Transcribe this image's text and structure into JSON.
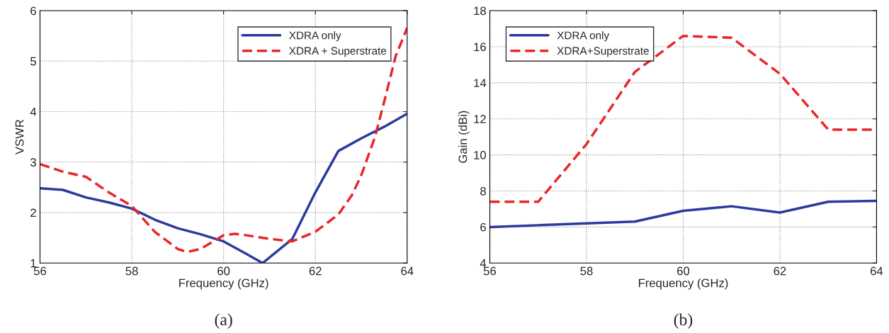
{
  "chart_data": [
    {
      "type": "line",
      "xlabel": "Frequency (GHz)",
      "ylabel": "VSWR",
      "xlim": [
        56,
        64
      ],
      "ylim": [
        1,
        6
      ],
      "xticks": [
        56,
        58,
        60,
        62,
        64
      ],
      "yticks": [
        1,
        2,
        3,
        4,
        5,
        6
      ],
      "grid": true,
      "legend": "top right",
      "annotations": [
        "(a)"
      ],
      "series": [
        {
          "name": "XDRA only",
          "color": "#2b3a9e",
          "line_style": "solid",
          "x": [
            56,
            56.5,
            57,
            57.5,
            58,
            58.5,
            59,
            59.5,
            60,
            60.5,
            60.85,
            61.5,
            62,
            62.5,
            63,
            63.5,
            64
          ],
          "values": [
            2.48,
            2.45,
            2.3,
            2.2,
            2.08,
            1.86,
            1.69,
            1.57,
            1.43,
            1.18,
            1.0,
            1.48,
            2.4,
            3.22,
            3.47,
            3.7,
            3.96
          ]
        },
        {
          "name": "XDRA + Superstrate",
          "color": "#e8262b",
          "line_style": "dashed",
          "x": [
            56,
            56.5,
            57,
            57.5,
            58,
            58.5,
            59,
            59.2,
            59.5,
            60,
            60.25,
            60.5,
            61,
            61.5,
            62,
            62.5,
            62.8,
            63,
            63.3,
            63.5,
            63.75,
            64
          ],
          "values": [
            2.96,
            2.81,
            2.71,
            2.4,
            2.13,
            1.62,
            1.28,
            1.22,
            1.28,
            1.55,
            1.58,
            1.55,
            1.48,
            1.43,
            1.62,
            1.96,
            2.35,
            2.74,
            3.5,
            4.2,
            5.1,
            5.66
          ]
        }
      ]
    },
    {
      "type": "line",
      "xlabel": "Frequency (GHz)",
      "ylabel": "Gain (dBi)",
      "xlim": [
        56,
        64
      ],
      "ylim": [
        4,
        18
      ],
      "xticks": [
        56,
        58,
        60,
        62,
        64
      ],
      "yticks": [
        4,
        6,
        8,
        10,
        12,
        14,
        16,
        18
      ],
      "grid": true,
      "legend": "top left",
      "annotations": [
        "(b)"
      ],
      "series": [
        {
          "name": "XDRA only",
          "color": "#2b3a9e",
          "line_style": "solid",
          "x": [
            56,
            57,
            58,
            59,
            60,
            61,
            62,
            63,
            64
          ],
          "values": [
            6.0,
            6.1,
            6.2,
            6.3,
            6.9,
            7.15,
            6.8,
            7.4,
            7.45
          ]
        },
        {
          "name": "XDRA+Superstrate",
          "color": "#e8262b",
          "line_style": "dashed",
          "x": [
            56,
            57,
            58,
            59,
            60,
            61,
            62,
            63,
            64
          ],
          "values": [
            7.4,
            7.4,
            10.6,
            14.6,
            16.6,
            16.5,
            14.5,
            11.4,
            11.4
          ]
        }
      ]
    }
  ]
}
